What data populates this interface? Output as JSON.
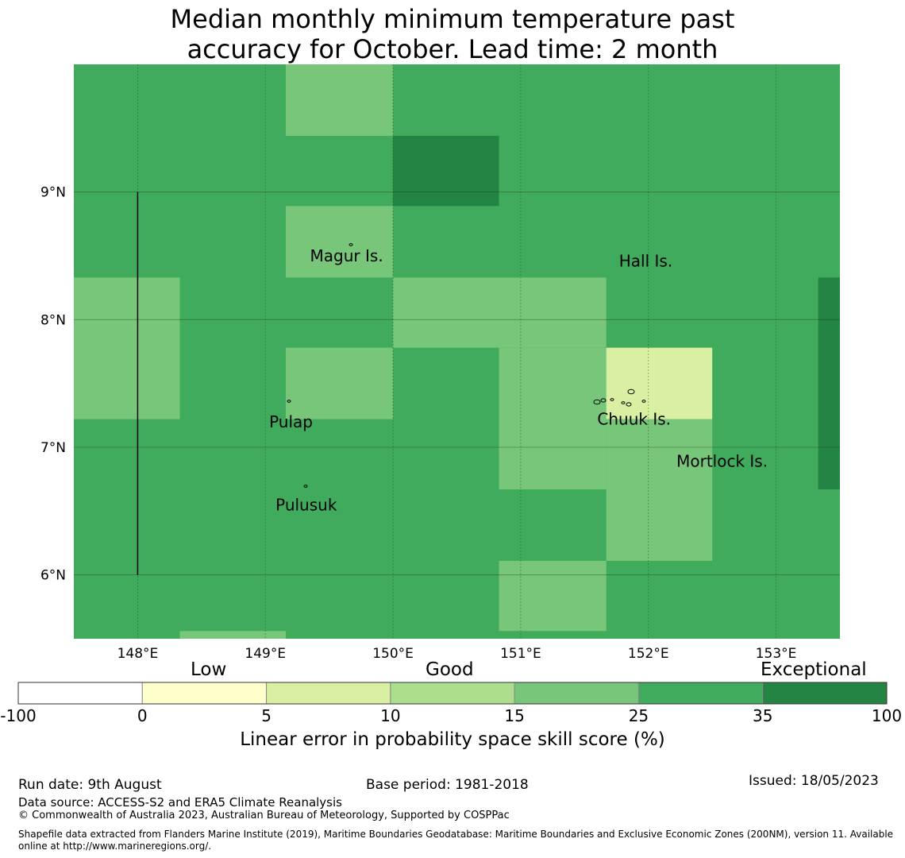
{
  "title": {
    "line1": "Median monthly minimum temperature past",
    "line2": "accuracy for October. Lead time: 2 month"
  },
  "map": {
    "lon_range": [
      147.5,
      153.5
    ],
    "lat_range": [
      5.5,
      10.0
    ],
    "lon_ticks": [
      {
        "value": 148,
        "label": "148°E"
      },
      {
        "value": 149,
        "label": "149°E"
      },
      {
        "value": 150,
        "label": "150°E"
      },
      {
        "value": 151,
        "label": "151°E"
      },
      {
        "value": 152,
        "label": "152°E"
      },
      {
        "value": 153,
        "label": "153°E"
      }
    ],
    "lat_ticks": [
      {
        "value": 9,
        "label": "9°N"
      },
      {
        "value": 8,
        "label": "8°N"
      },
      {
        "value": 7,
        "label": "7°N"
      },
      {
        "value": 6,
        "label": "6°N"
      }
    ],
    "places": [
      {
        "name": "Magur Is.",
        "lon": 149.35,
        "lat": 8.5
      },
      {
        "name": "Hall Is.",
        "lon": 151.77,
        "lat": 8.46
      },
      {
        "name": "Pulap",
        "lon": 149.03,
        "lat": 7.2
      },
      {
        "name": "Chuuk Is.",
        "lon": 151.6,
        "lat": 7.22
      },
      {
        "name": "Mortlock Is.",
        "lon": 152.22,
        "lat": 6.89
      },
      {
        "name": "Pulusuk",
        "lon": 149.08,
        "lat": 6.55
      }
    ],
    "base_color": "#41ab5d",
    "cells": [
      {
        "lon0": 149.16,
        "lon1": 150.0,
        "lat0": 9.44,
        "lat1": 10.0,
        "color": "#78c679"
      },
      {
        "lon0": 150.0,
        "lon1": 150.83,
        "lat0": 8.89,
        "lat1": 9.44,
        "color": "#238443"
      },
      {
        "lon0": 149.16,
        "lon1": 150.0,
        "lat0": 8.33,
        "lat1": 8.89,
        "color": "#78c679"
      },
      {
        "lon0": 147.5,
        "lon1": 148.33,
        "lat0": 7.22,
        "lat1": 8.33,
        "color": "#78c679"
      },
      {
        "lon0": 150.0,
        "lon1": 151.67,
        "lat0": 7.78,
        "lat1": 8.33,
        "color": "#78c679"
      },
      {
        "lon0": 149.16,
        "lon1": 150.0,
        "lat0": 7.22,
        "lat1": 7.78,
        "color": "#78c679"
      },
      {
        "lon0": 150.83,
        "lon1": 151.67,
        "lat0": 6.67,
        "lat1": 7.78,
        "color": "#78c679"
      },
      {
        "lon0": 151.67,
        "lon1": 152.5,
        "lat0": 7.22,
        "lat1": 7.78,
        "color": "#d9f0a3"
      },
      {
        "lon0": 151.67,
        "lon1": 152.5,
        "lat0": 6.11,
        "lat1": 7.22,
        "color": "#78c679"
      },
      {
        "lon0": 153.33,
        "lon1": 153.5,
        "lat0": 6.67,
        "lat1": 8.33,
        "color": "#238443"
      },
      {
        "lon0": 150.83,
        "lon1": 151.67,
        "lat0": 5.56,
        "lat1": 6.11,
        "color": "#78c679"
      },
      {
        "lon0": 148.33,
        "lon1": 149.16,
        "lat0": 5.5,
        "lat1": 5.56,
        "color": "#78c679"
      }
    ],
    "boundary_line": {
      "lon": 148.0,
      "lat0": 6.0,
      "lat1": 9.0
    }
  },
  "colorbar": {
    "categories": [
      "Low",
      "Good",
      "Exceptional"
    ],
    "ticks": [
      "-100",
      "0",
      "5",
      "10",
      "15",
      "25",
      "35",
      "100"
    ],
    "colors": [
      "#ffffff",
      "#ffffcc",
      "#d9f0a3",
      "#addd8e",
      "#78c679",
      "#41ab5d",
      "#238443"
    ],
    "label": "Linear error in probability space skill score (%)"
  },
  "footer": {
    "run_date": "Run date: 9th August",
    "base_period": "Base period: 1981-2018",
    "issued": "Issued: 18/05/2023",
    "data_source": "Data source: ACCESS-S2 and ERA5 Climate Reanalysis",
    "copyright": "© Commonwealth of Australia 2023, Australian Bureau of Meteorology, Supported by COSPPac",
    "shapefile": "Shapefile data extracted from Flanders Marine Institute (2019), Maritime Boundaries Geodatabase: Maritime Boundaries and Exclusive Economic Zones (200NM), version 11. Available online at http://www.marineregions.org/."
  }
}
